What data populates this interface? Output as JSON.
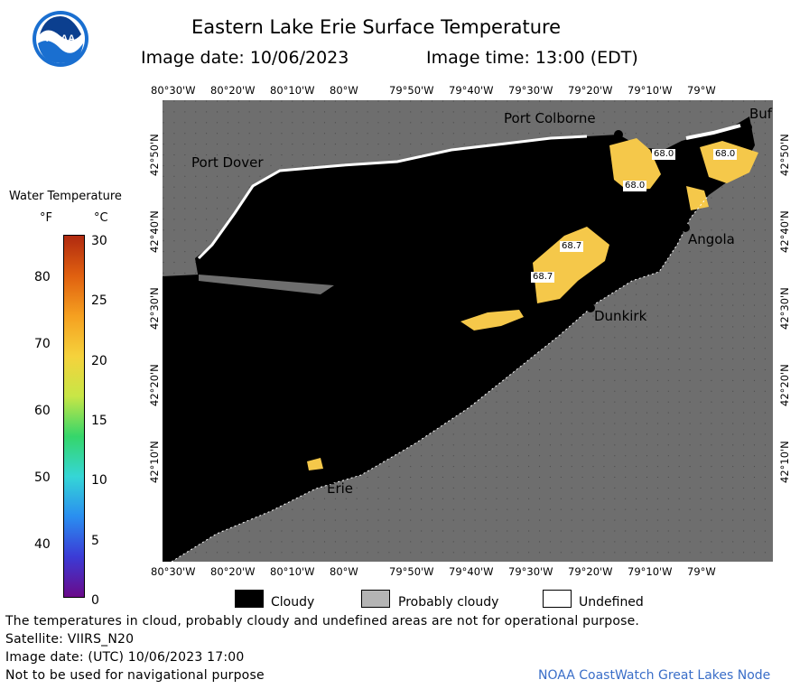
{
  "header": {
    "logo_text": "NOAA",
    "title": "Eastern Lake Erie Surface Temperature",
    "image_date": "Image date: 10/06/2023",
    "image_time": "Image time: 13:00 (EDT)"
  },
  "legend": {
    "title": "Water Temperature",
    "unit_f": "°F",
    "unit_c": "°C",
    "f_ticks": [
      "80",
      "70",
      "60",
      "50",
      "40"
    ],
    "c_ticks": [
      "30",
      "25",
      "20",
      "15",
      "10",
      "5",
      "0"
    ],
    "colors": [
      "#6a0a8a",
      "#3b3bd6",
      "#2a8ef0",
      "#35d6d6",
      "#35d66a",
      "#c8e646",
      "#f5d23c",
      "#f5a020",
      "#e06010",
      "#b02a10"
    ]
  },
  "map": {
    "top_ticks": [
      "80°30'W",
      "80°20'W",
      "80°10'W",
      "80°W",
      "79°50'W",
      "79°40'W",
      "79°30'W",
      "79°20'W",
      "79°10'W",
      "79°W"
    ],
    "bottom_ticks": [
      "80°30'W",
      "80°20'W",
      "80°10'W",
      "80°W",
      "79°50'W",
      "79°40'W",
      "79°30'W",
      "79°20'W",
      "79°10'W",
      "79°W"
    ],
    "left_ticks": [
      "42°50'N",
      "42°40'N",
      "42°30'N",
      "42°20'N",
      "42°10'N"
    ],
    "right_ticks": [
      "42°50'N",
      "42°40'N",
      "42°30'N",
      "42°20'N",
      "42°10'N"
    ],
    "places": {
      "port_colborne": "Port Colborne",
      "port_dover": "Port Dover",
      "buffalo": "Buf",
      "angola": "Angola",
      "dunkirk": "Dunkirk",
      "erie": "Erie"
    },
    "temps": [
      "68.0",
      "68.0",
      "68.0",
      "68.7",
      "68.7"
    ],
    "colors": {
      "land": "#6e6e6e",
      "cloud": "#000000",
      "warm": "#f5c84a",
      "probably_cloudy": "#b4b4b4",
      "undefined": "#ffffff"
    }
  },
  "key": {
    "cloudy": "Cloudy",
    "probably_cloudy": "Probably cloudy",
    "undefined": "Undefined"
  },
  "footer": {
    "note": "The temperatures in cloud, probably cloudy and undefined areas are not for operational purpose.",
    "satellite": "Satellite: VIIRS_N20",
    "utc_date": "Image date: (UTC) 10/06/2023  17:00",
    "nav_warning": "Not to be used for navigational purpose",
    "credit": "NOAA CoastWatch Great Lakes Node"
  }
}
